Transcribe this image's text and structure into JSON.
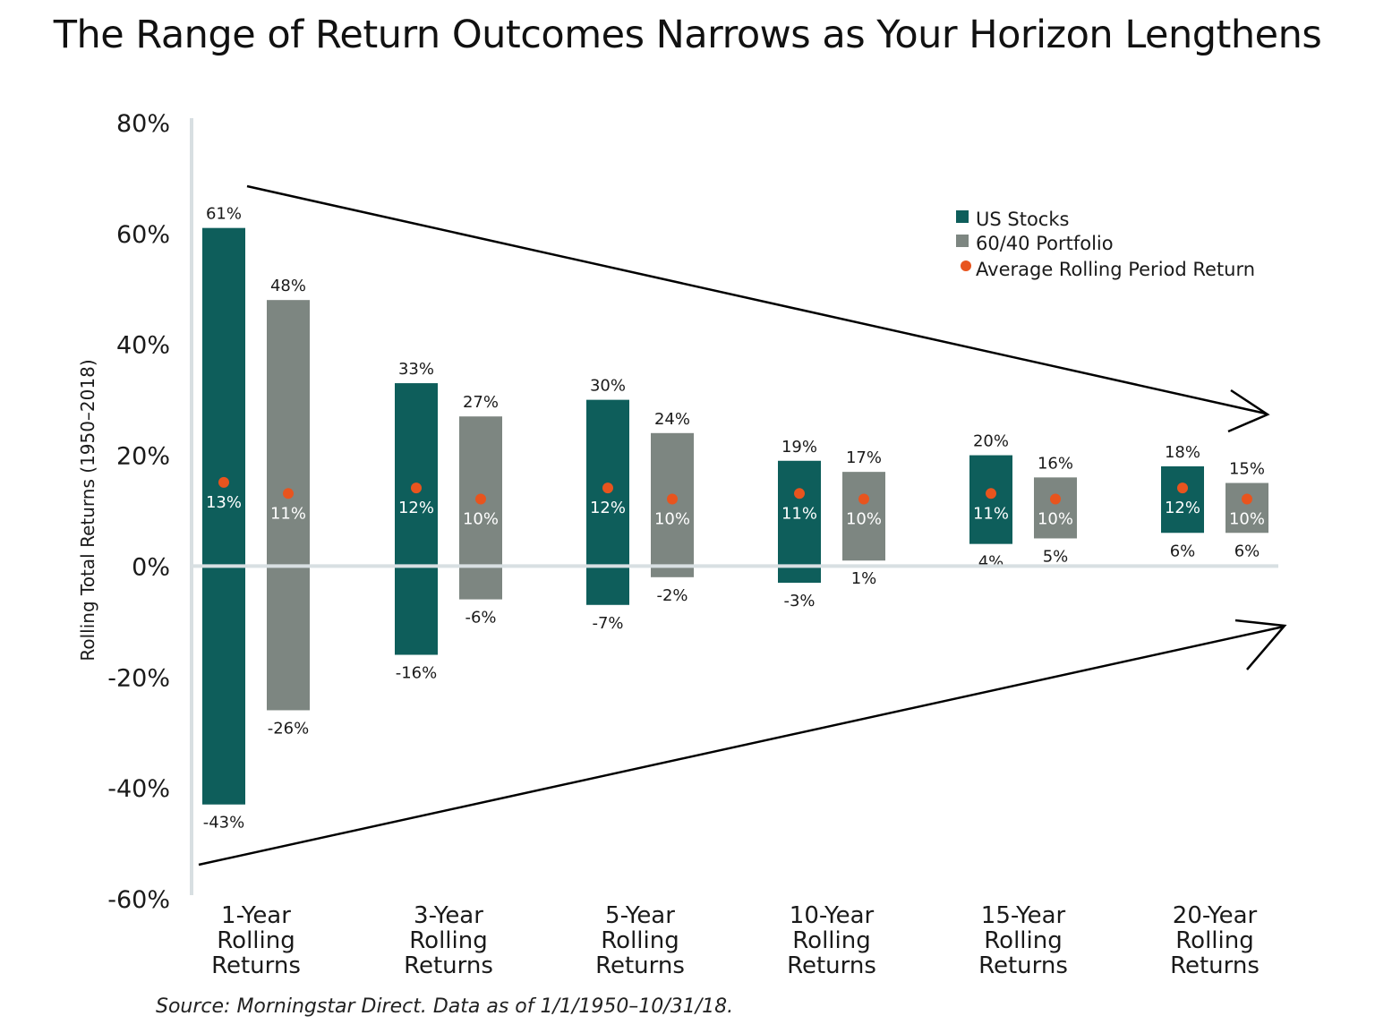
{
  "title": "The Range of Return Outcomes Narrows as Your Horizon Lengthens",
  "source": "Source: Morningstar Direct. Data as of 1/1/1950–10/31/18.",
  "colors": {
    "us_stocks": "#0e5e5b",
    "portfolio_60_40": "#7d8681",
    "average": "#e8541e",
    "axis": "#d8dfe2"
  },
  "chart_data": {
    "type": "bar",
    "subtype": "floating-range",
    "ylabel": "Rolling Total Returns (1950–2018)",
    "ylim": [
      -60,
      80
    ],
    "yticks": [
      80,
      60,
      40,
      20,
      0,
      -20,
      -40,
      -60
    ],
    "ytick_labels": [
      "80%",
      "60%",
      "40%",
      "20%",
      "0%",
      "-20%",
      "-40%",
      "-60%"
    ],
    "categories": [
      [
        "1-Year",
        "Rolling",
        "Returns"
      ],
      [
        "3-Year",
        "Rolling",
        "Returns"
      ],
      [
        "5-Year",
        "Rolling",
        "Returns"
      ],
      [
        "10-Year",
        "Rolling",
        "Returns"
      ],
      [
        "15-Year",
        "Rolling",
        "Returns"
      ],
      [
        "20-Year",
        "Rolling",
        "Returns"
      ]
    ],
    "legend": {
      "position": "top-right",
      "items": [
        "US Stocks",
        "60/40 Portfolio",
        "Average Rolling Period Return"
      ]
    },
    "series": [
      {
        "name": "US Stocks",
        "high": [
          61,
          33,
          30,
          19,
          20,
          18
        ],
        "low": [
          -43,
          -16,
          -7,
          -3,
          4,
          6
        ],
        "average": [
          13,
          12,
          12,
          11,
          11,
          12
        ],
        "high_labels": [
          "61%",
          "33%",
          "30%",
          "19%",
          "20%",
          "18%"
        ],
        "low_labels": [
          "-43%",
          "-16%",
          "-7%",
          "-3%",
          "4%",
          "6%"
        ],
        "average_labels": [
          "13%",
          "12%",
          "12%",
          "11%",
          "11%",
          "12%"
        ]
      },
      {
        "name": "60/40 Portfolio",
        "high": [
          48,
          27,
          24,
          17,
          16,
          15
        ],
        "low": [
          -26,
          -6,
          -2,
          1,
          5,
          6
        ],
        "average": [
          11,
          10,
          10,
          10,
          10,
          10
        ],
        "high_labels": [
          "48%",
          "27%",
          "24%",
          "17%",
          "16%",
          "15%"
        ],
        "low_labels": [
          "-26%",
          "-6%",
          "-2%",
          "1%",
          "5%",
          "6%"
        ],
        "average_labels": [
          "11%",
          "10%",
          "10%",
          "10%",
          "10%",
          "10%"
        ]
      }
    ]
  }
}
